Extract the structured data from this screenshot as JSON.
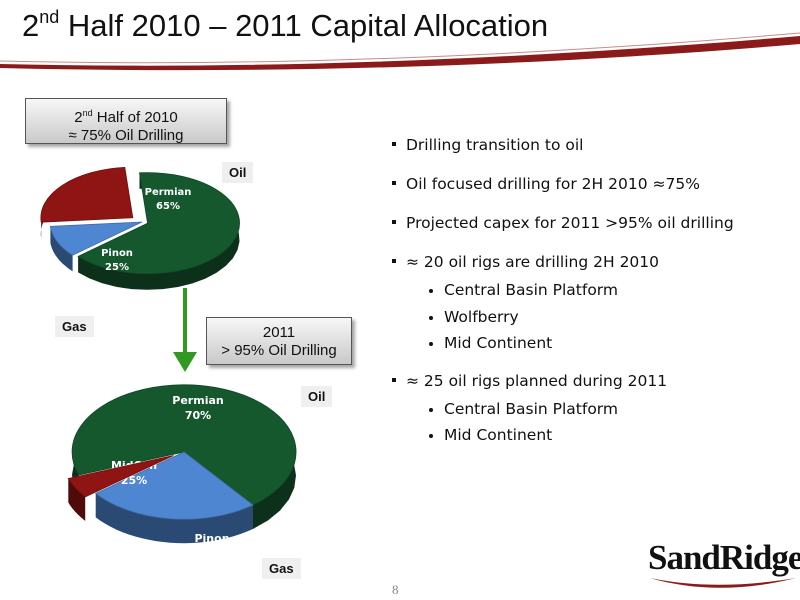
{
  "header": {
    "title_pre": "2",
    "title_sup": "nd",
    "title_post": " Half 2010 – 2011 Capital Allocation"
  },
  "callout_2010": {
    "line1_pre": "2",
    "line1_sup": "nd",
    "line1_post": " Half of 2010",
    "line2": "≈ 75% Oil Drilling"
  },
  "callout_2011": {
    "line1": "2011",
    "line2": "> 95% Oil Drilling"
  },
  "tags": {
    "oil_2010": "Oil",
    "gas_2010": "Gas",
    "oil_2011": "Oil",
    "gas_2011": "Gas"
  },
  "bullets": {
    "b1": "Drilling transition to oil",
    "b2": "Oil focused drilling for 2H 2010 ≈75%",
    "b3": "Projected capex for 2011 >95% oil drilling",
    "b4": "≈ 20 oil rigs are drilling 2H 2010",
    "b4_sub": [
      "Central Basin Platform",
      "Wolfberry",
      "Mid Continent"
    ],
    "b5": "≈ 25 oil rigs planned during 2011",
    "b5_sub": [
      "Central Basin Platform",
      "Mid Continent"
    ]
  },
  "page_number": "8",
  "logo_text": "SandRidge",
  "colors": {
    "permian": "#15582e",
    "midcon": "#4f86d1",
    "pinon": "#8f1414",
    "brand_red": "#8b1a1a"
  },
  "chart_data": [
    {
      "type": "pie",
      "title": "2nd Half of 2010",
      "categories": [
        "Permian",
        "MidCon",
        "Pinon"
      ],
      "values": [
        65,
        10,
        25
      ],
      "labels": [
        "65%",
        "10%",
        "25%"
      ]
    },
    {
      "type": "pie",
      "title": "2011",
      "categories": [
        "Permian",
        "MidCon",
        "Pinon"
      ],
      "values": [
        70,
        25,
        5
      ],
      "labels": [
        "70%",
        "25%",
        "5%"
      ]
    }
  ]
}
